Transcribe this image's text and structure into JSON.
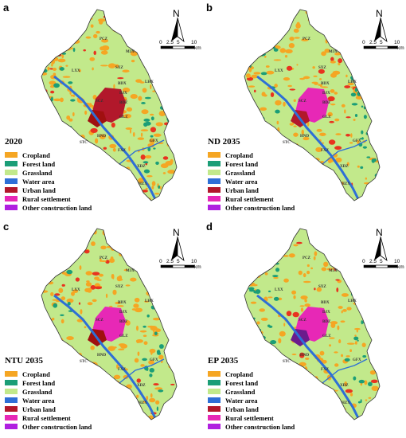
{
  "north_label": "N",
  "scale": {
    "ticks": [
      "0",
      "2.5",
      "5",
      "10"
    ],
    "unit": "km"
  },
  "legend_items": [
    {
      "label": "Cropland",
      "color": "#f5a623"
    },
    {
      "label": "Forest land",
      "color": "#1b9e77"
    },
    {
      "label": "Grassland",
      "color": "#c2e98b"
    },
    {
      "label": "Water area",
      "color": "#2e6fd6"
    },
    {
      "label": "Urban land",
      "color": "#b2182b"
    },
    {
      "label": "Rural settlement",
      "color": "#e728b6"
    },
    {
      "label": "Other construction land",
      "color": "#b01fe0"
    }
  ],
  "panels": [
    {
      "letter": "a",
      "title": "2020",
      "urban_color": "#b2182b",
      "core_color": "#a01010"
    },
    {
      "letter": "b",
      "title": "ND 2035",
      "urban_color": "#e728b6",
      "core_color": "#b2182b"
    },
    {
      "letter": "c",
      "title": "NTU 2035",
      "urban_color": "#e728b6",
      "core_color": "#a01010"
    },
    {
      "letter": "d",
      "title": "EP 2035",
      "urban_color": "#e728b6",
      "core_color": "#6b1c8c"
    }
  ],
  "towns": [
    "PCZ",
    "MJX",
    "LXX",
    "SXZ",
    "LHX",
    "BDX",
    "DJX",
    "SCZ",
    "BDZ",
    "GLZ",
    "HND",
    "STC",
    "GFX",
    "FXZ",
    "XDZ",
    "HZX"
  ]
}
